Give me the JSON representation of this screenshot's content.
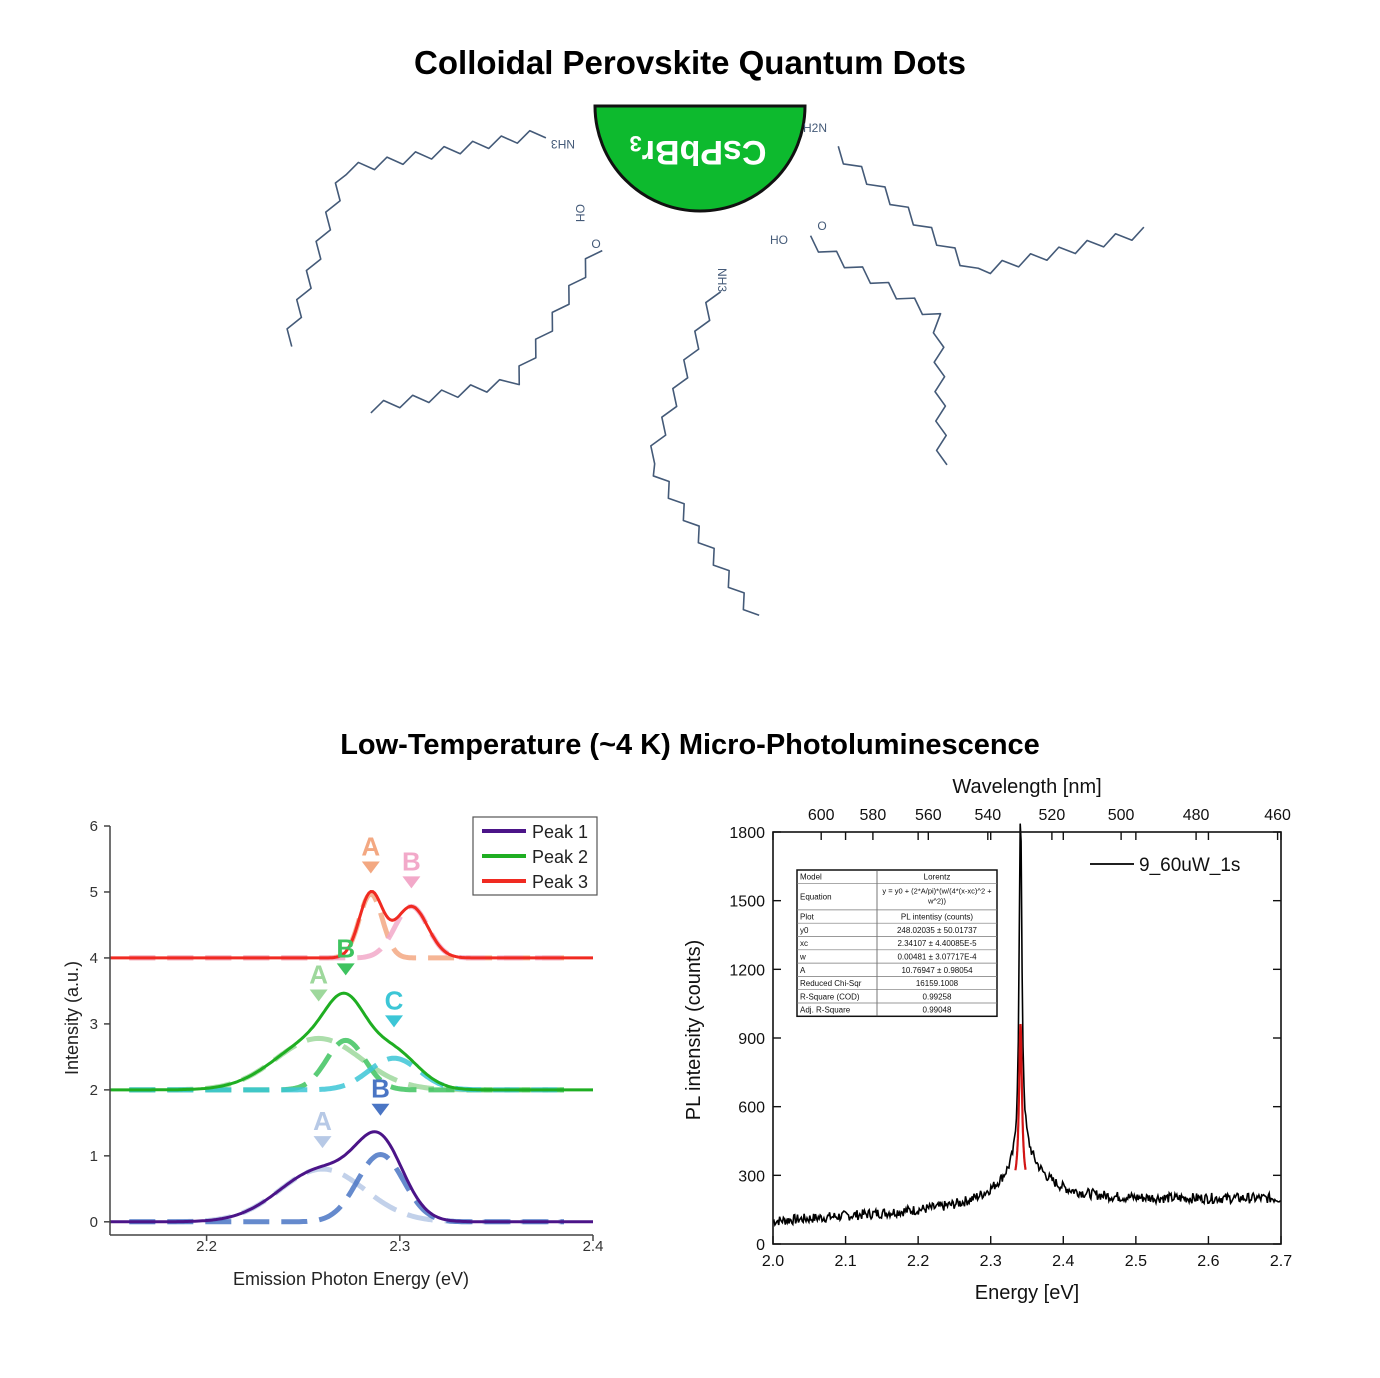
{
  "titles": {
    "top": "Colloidal Perovskite Quantum Dots",
    "bottom": "Low-Temperature (~4 K) Micro-Photoluminescence"
  },
  "diagram": {
    "core_label": "CsPbBr3",
    "core_color": "#0dba2e",
    "ligand_color": "#445a78",
    "ligand_labels": [
      "NH3",
      "H2N",
      "OH",
      "HO",
      "NH3"
    ]
  },
  "chart_data": [
    {
      "type": "line",
      "xlabel": "Emission Photon Energy (eV)",
      "ylabel": "Intensity (a.u.)",
      "xlim": [
        2.15,
        2.4
      ],
      "ylim": [
        -0.2,
        6
      ],
      "xticks": [
        "2.2",
        "2.3",
        "2.4"
      ],
      "yticks": [
        "0",
        "1",
        "2",
        "3",
        "4",
        "5",
        "6"
      ],
      "legend": {
        "position": "top-right",
        "entries": [
          "Peak 1",
          "Peak 2",
          "Peak 3"
        ]
      },
      "series": [
        {
          "name": "Peak 1",
          "color": "#4b1488",
          "offset": 0,
          "components": [
            {
              "center": 2.26,
              "amp": 0.8,
              "width": 0.022,
              "label": "A",
              "color": "#b7c9e6"
            },
            {
              "center": 2.29,
              "amp": 1.02,
              "width": 0.012,
              "label": "B",
              "color": "#4a75c4"
            }
          ]
        },
        {
          "name": "Peak 2",
          "color": "#1fae22",
          "offset": 2,
          "components": [
            {
              "center": 2.258,
              "amp": 0.78,
              "width": 0.022,
              "label": "A",
              "color": "#9ed89c"
            },
            {
              "center": 2.272,
              "amp": 0.75,
              "width": 0.01,
              "label": "B",
              "color": "#3ec35f"
            },
            {
              "center": 2.297,
              "amp": 0.48,
              "width": 0.013,
              "label": "C",
              "color": "#3cc6d6"
            }
          ]
        },
        {
          "name": "Peak 3",
          "color": "#f02a21",
          "offset": 4,
          "components": [
            {
              "center": 2.285,
              "amp": 0.97,
              "width": 0.006,
              "label": "A",
              "color": "#f3a882"
            },
            {
              "center": 2.306,
              "amp": 0.78,
              "width": 0.0085,
              "label": "B",
              "color": "#f2a9c9"
            }
          ]
        }
      ]
    },
    {
      "type": "line",
      "xlabel": "Energy [eV]",
      "ylabel": "PL intensity (counts)",
      "x2label": "Wavelength [nm]",
      "xlim": [
        2.0,
        2.7
      ],
      "ylim": [
        0,
        1800
      ],
      "xticks": [
        "2.0",
        "2.1",
        "2.2",
        "2.3",
        "2.4",
        "2.5",
        "2.6",
        "2.7"
      ],
      "yticks": [
        "0",
        "300",
        "600",
        "900",
        "1200",
        "1500",
        "1800"
      ],
      "x2ticks": [
        "600",
        "580",
        "560",
        "540",
        "520",
        "500",
        "480",
        "460"
      ],
      "legend": {
        "position": "top-right",
        "entries": [
          "9_60uW_1s"
        ]
      },
      "series": [
        {
          "name": "9_60uW_1s",
          "color": "#000000",
          "baseline_start": 100,
          "baseline_end": 200,
          "peak_center": 2.341,
          "peak_height": 1480,
          "shoulder_height": 300,
          "shoulder_width": 0.035
        },
        {
          "name": "Lorentz fit",
          "color": "#d21414",
          "center": 2.34107,
          "w": 0.00481,
          "A": 10.76947,
          "y0": 248.02035
        }
      ],
      "fit_table": [
        [
          "Model",
          "Lorentz"
        ],
        [
          "Equation",
          "y = y0 + (2*A/pi)*(w/(4*(x-xc)^2 + w^2))"
        ],
        [
          "Plot",
          "PL intentisy (counts)"
        ],
        [
          "y0",
          "248.02035 ± 50.01737"
        ],
        [
          "xc",
          "2.34107 ± 4.40085E-5"
        ],
        [
          "w",
          "0.00481 ± 3.07717E-4"
        ],
        [
          "A",
          "10.76947 ± 0.98054"
        ],
        [
          "Reduced Chi-Sqr",
          "16159.1008"
        ],
        [
          "R-Square (COD)",
          "0.99258"
        ],
        [
          "Adj. R-Square",
          "0.99048"
        ]
      ]
    }
  ]
}
